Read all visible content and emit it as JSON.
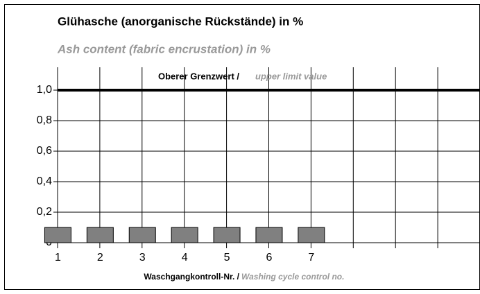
{
  "chart_data": {
    "type": "bar",
    "title": "Glühasche (anorganische Rückstände) in %",
    "subtitle": "Ash content (fabric encrustation) in %",
    "categories": [
      "1",
      "2",
      "3",
      "4",
      "5",
      "6",
      "7",
      null,
      null,
      null
    ],
    "values": [
      0.1,
      0.1,
      0.1,
      0.1,
      0.1,
      0.1,
      0.1,
      null,
      null,
      null
    ],
    "color": "#808080",
    "ylim": [
      0,
      1.15
    ],
    "yticks": [
      0,
      {
        "value": 0.2,
        "label": "0,2"
      },
      {
        "value": 0.4,
        "label": "0,4"
      },
      {
        "value": 0.6,
        "label": "0,6"
      },
      {
        "value": 0.8,
        "label": "0,8"
      },
      {
        "value": 1,
        "label": "1,0"
      }
    ],
    "grid": true,
    "limit_line": {
      "value": 1,
      "label": "Oberer Grenzwert /",
      "label_en": "upper limit value"
    },
    "xlabel": "Waschgangkontroll-Nr. /",
    "xlabel_en": "Washing cycle control no."
  }
}
